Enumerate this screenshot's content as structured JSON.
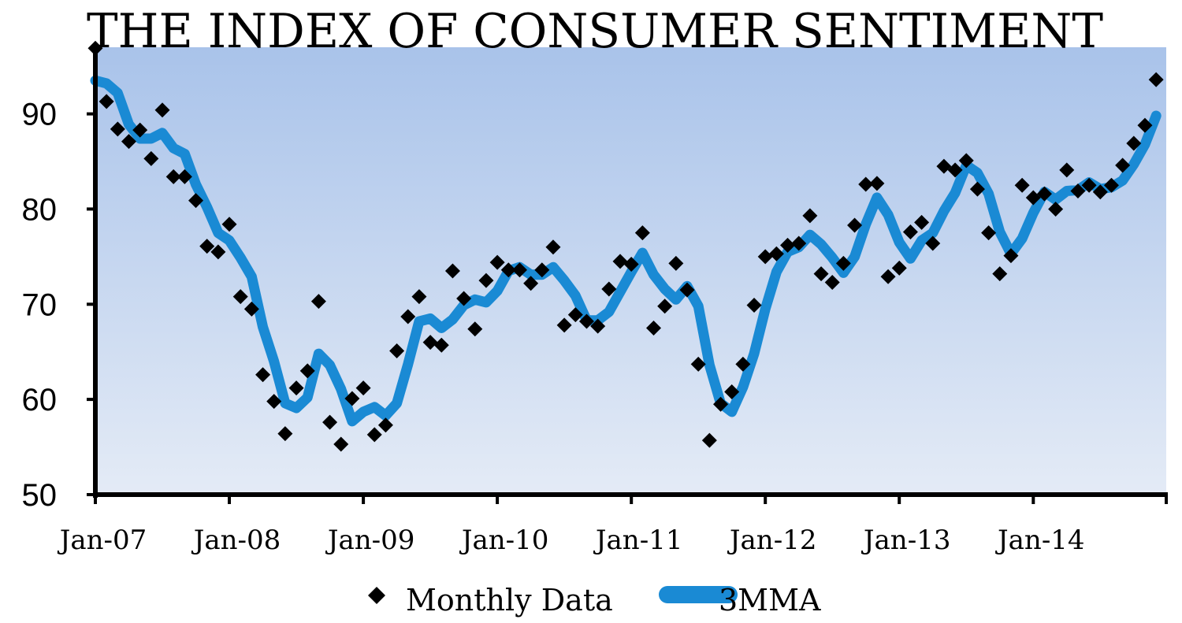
{
  "chart_data": {
    "type": "line",
    "title": "THE INDEX OF CONSUMER SENTIMENT",
    "ylim": [
      50,
      97
    ],
    "y_ticks": [
      "90",
      "80",
      "70",
      "60",
      "50"
    ],
    "x_tick_labels": [
      "Jan-07",
      "Jan-08",
      "Jan-09",
      "Jan-10",
      "Jan-11",
      "Jan-12",
      "Jan-13",
      "Jan-14"
    ],
    "x_start": "2007-01",
    "legend": {
      "position": "bottom",
      "items": [
        "Monthly Data",
        "3MMA"
      ]
    },
    "colors": {
      "moving_average": "#1a8ad4",
      "monthly": "#000000",
      "plot_top": "#a9c3ea",
      "plot_bottom": "#e4ebf6"
    },
    "series": [
      {
        "name": "Monthly Data",
        "style": "diamond-markers",
        "values": [
          96.9,
          91.3,
          88.4,
          87.1,
          88.3,
          85.3,
          90.4,
          83.4,
          83.4,
          80.9,
          76.1,
          75.5,
          78.4,
          70.8,
          69.5,
          62.6,
          59.8,
          56.4,
          61.2,
          63.0,
          70.3,
          57.6,
          55.3,
          60.1,
          61.2,
          56.3,
          57.3,
          65.1,
          68.7,
          70.8,
          66.0,
          65.7,
          73.5,
          70.6,
          67.4,
          72.5,
          74.4,
          73.6,
          73.6,
          72.2,
          73.6,
          76.0,
          67.8,
          68.9,
          68.2,
          67.7,
          71.6,
          74.5,
          74.2,
          77.5,
          67.5,
          69.8,
          74.3,
          71.5,
          63.7,
          55.7,
          59.5,
          60.8,
          63.7,
          69.9,
          75.0,
          75.3,
          76.2,
          76.4,
          79.3,
          73.2,
          72.3,
          74.3,
          78.3,
          82.6,
          82.7,
          72.9,
          73.8,
          77.6,
          78.6,
          76.4,
          84.5,
          84.1,
          85.1,
          82.1,
          77.5,
          73.2,
          75.1,
          82.5,
          81.2,
          81.6,
          80.0,
          84.1,
          81.9,
          82.5,
          81.8,
          82.5,
          84.6,
          86.9,
          88.8,
          93.6
        ]
      },
      {
        "name": "3MMA",
        "style": "thick-line",
        "values": [
          93.5,
          93.2,
          92.2,
          88.9,
          87.4,
          87.4,
          88.0,
          86.4,
          85.8,
          82.6,
          80.2,
          77.5,
          76.7,
          74.9,
          72.9,
          67.6,
          64.0,
          59.6,
          59.1,
          60.2,
          64.8,
          63.6,
          61.1,
          57.7,
          58.7,
          59.2,
          58.3,
          59.6,
          63.7,
          68.2,
          68.5,
          67.5,
          68.4,
          69.9,
          70.5,
          70.2,
          71.4,
          73.5,
          73.9,
          73.1,
          73.1,
          73.9,
          72.5,
          70.9,
          68.3,
          68.3,
          69.2,
          71.3,
          73.4,
          75.4,
          73.1,
          71.6,
          70.5,
          71.9,
          69.8,
          63.6,
          59.6,
          58.7,
          61.3,
          64.8,
          69.5,
          73.4,
          75.5,
          76.0,
          77.3,
          76.3,
          74.9,
          73.3,
          75.0,
          78.4,
          81.2,
          79.4,
          76.5,
          74.8,
          76.7,
          77.5,
          79.8,
          81.7,
          84.6,
          83.8,
          81.6,
          77.6,
          75.3,
          76.9,
          79.6,
          81.8,
          81.0,
          81.9,
          82.0,
          82.8,
          82.1,
          82.3,
          83.0,
          84.7,
          86.8,
          89.8
        ]
      }
    ]
  }
}
